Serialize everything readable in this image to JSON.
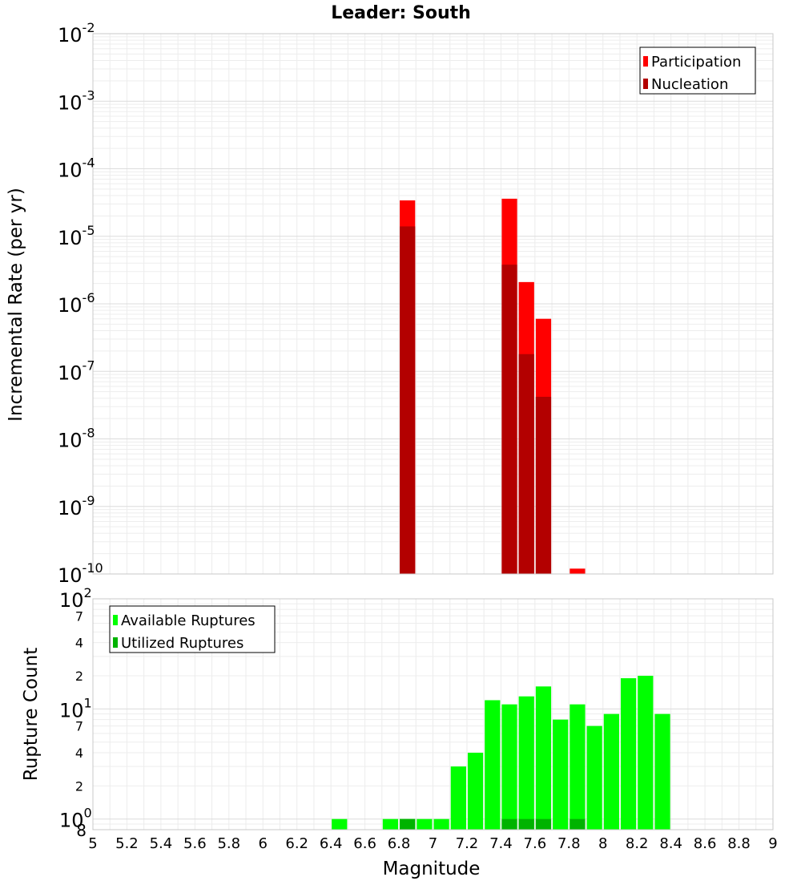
{
  "chart_data": [
    {
      "type": "bar",
      "title": "Leader: South",
      "ylabel": "Incremental Rate (per yr)",
      "y_scale": "log",
      "ylim": [
        1e-10,
        0.01
      ],
      "y_tick_labels": [
        {
          "base": "10",
          "exp": "-2",
          "value": 0.01
        },
        {
          "base": "10",
          "exp": "-3",
          "value": 0.001
        },
        {
          "base": "10",
          "exp": "-4",
          "value": 0.0001
        },
        {
          "base": "10",
          "exp": "-5",
          "value": 1e-05
        },
        {
          "base": "10",
          "exp": "-6",
          "value": 1e-06
        },
        {
          "base": "10",
          "exp": "-7",
          "value": 1e-07
        },
        {
          "base": "10",
          "exp": "-8",
          "value": 1e-08
        },
        {
          "base": "10",
          "exp": "-9",
          "value": 1e-09
        },
        {
          "base": "10",
          "exp": "-10",
          "value": 1e-10
        }
      ],
      "grid": true,
      "legend_position": "top-right",
      "series": [
        {
          "name": "Participation",
          "color": "#ff0000",
          "points": [
            {
              "x": 6.85,
              "y": 3.4e-05
            },
            {
              "x": 7.45,
              "y": 3.6e-05
            },
            {
              "x": 7.55,
              "y": 2.1e-06
            },
            {
              "x": 7.65,
              "y": 6e-07
            },
            {
              "x": 7.85,
              "y": 1.2e-10
            }
          ]
        },
        {
          "name": "Nucleation",
          "color": "#b30000",
          "points": [
            {
              "x": 6.85,
              "y": 1.4e-05
            },
            {
              "x": 7.45,
              "y": 3.8e-06
            },
            {
              "x": 7.55,
              "y": 1.8e-07
            },
            {
              "x": 7.65,
              "y": 4.2e-08
            }
          ]
        }
      ]
    },
    {
      "type": "bar",
      "xlabel": "Magnitude",
      "ylabel": "Rupture Count",
      "x_scale": "linear",
      "xlim": [
        5,
        9
      ],
      "x_tick_labels": [
        "5",
        "5.2",
        "5.4",
        "5.6",
        "5.8",
        "6",
        "6.2",
        "6.4",
        "6.6",
        "6.8",
        "7",
        "7.2",
        "7.4",
        "7.6",
        "7.8",
        "8",
        "8.2",
        "8.4",
        "8.6",
        "8.8",
        "9"
      ],
      "y_scale": "log",
      "ylim": [
        0.8,
        100
      ],
      "y_major_ticks": [
        {
          "base": "10",
          "exp": "2",
          "value": 100
        },
        {
          "base": "10",
          "exp": "1",
          "value": 10
        },
        {
          "base": "10",
          "exp": "0",
          "value": 1
        }
      ],
      "y_minor_ticks": [
        {
          "label": "7",
          "value": 70
        },
        {
          "label": "4",
          "value": 40
        },
        {
          "label": "2",
          "value": 20
        },
        {
          "label": "7",
          "value": 7
        },
        {
          "label": "4",
          "value": 4
        },
        {
          "label": "2",
          "value": 2
        }
      ],
      "y_bottom_label": {
        "label": "8",
        "value": 0.8
      },
      "grid": true,
      "legend_position": "top-left",
      "series": [
        {
          "name": "Available Ruptures",
          "color": "#00ff00",
          "points": [
            {
              "x": 6.45,
              "y": 1
            },
            {
              "x": 6.75,
              "y": 1
            },
            {
              "x": 6.85,
              "y": 1
            },
            {
              "x": 6.95,
              "y": 1
            },
            {
              "x": 7.05,
              "y": 1
            },
            {
              "x": 7.15,
              "y": 3
            },
            {
              "x": 7.25,
              "y": 4
            },
            {
              "x": 7.35,
              "y": 12
            },
            {
              "x": 7.45,
              "y": 11
            },
            {
              "x": 7.55,
              "y": 13
            },
            {
              "x": 7.65,
              "y": 16
            },
            {
              "x": 7.75,
              "y": 8
            },
            {
              "x": 7.85,
              "y": 11
            },
            {
              "x": 7.95,
              "y": 7
            },
            {
              "x": 8.05,
              "y": 9
            },
            {
              "x": 8.15,
              "y": 19
            },
            {
              "x": 8.25,
              "y": 20
            },
            {
              "x": 8.35,
              "y": 9
            }
          ]
        },
        {
          "name": "Utilized Ruptures",
          "color": "#00b300",
          "points": [
            {
              "x": 6.85,
              "y": 1
            },
            {
              "x": 7.45,
              "y": 1
            },
            {
              "x": 7.55,
              "y": 1
            },
            {
              "x": 7.65,
              "y": 1
            },
            {
              "x": 7.85,
              "y": 1
            }
          ]
        }
      ]
    }
  ]
}
